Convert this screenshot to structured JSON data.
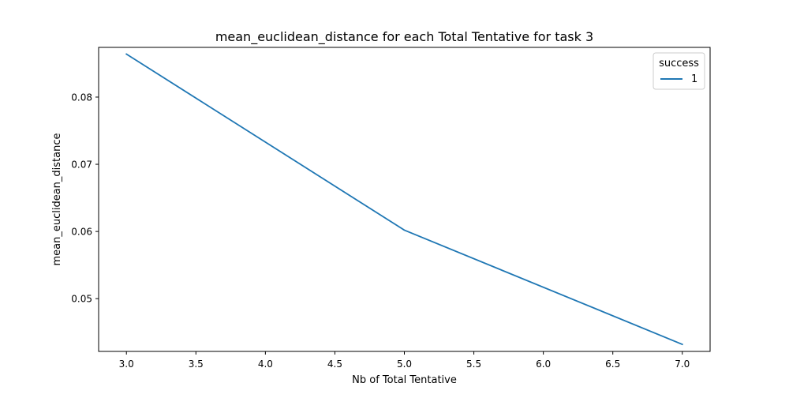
{
  "chart_data": {
    "type": "line",
    "title": "mean_euclidean_distance for each Total Tentative for task 3",
    "xlabel": "Nb of Total Tentative",
    "ylabel": "mean_euclidean_distance",
    "xlim": [
      2.8,
      7.2
    ],
    "ylim": [
      0.04215,
      0.0874
    ],
    "x_ticks": [
      3.0,
      3.5,
      4.0,
      4.5,
      5.0,
      5.5,
      6.0,
      6.5,
      7.0
    ],
    "x_tick_labels": [
      "3.0",
      "3.5",
      "4.0",
      "4.5",
      "5.0",
      "5.5",
      "6.0",
      "6.5",
      "7.0"
    ],
    "y_ticks": [
      0.05,
      0.06,
      0.07,
      0.08
    ],
    "y_tick_labels": [
      "0.05",
      "0.06",
      "0.07",
      "0.08"
    ],
    "grid": false,
    "legend": {
      "title": "success",
      "placement": "top-right"
    },
    "series": [
      {
        "name": "1",
        "color": "#1f77b4",
        "x": [
          3,
          5,
          7
        ],
        "y": [
          0.0864,
          0.0602,
          0.0432
        ]
      }
    ]
  }
}
